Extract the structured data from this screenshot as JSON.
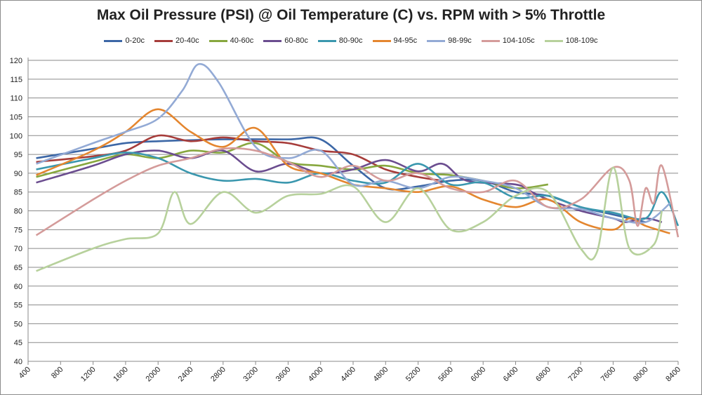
{
  "chart_data": {
    "type": "line",
    "title": "Max Oil Pressure (PSI) @ Oil Temperature (C) vs. RPM with > 5% Throttle",
    "xlabel": "",
    "ylabel": "",
    "xlim": [
      400,
      8400
    ],
    "ylim": [
      40,
      120
    ],
    "x_ticks": [
      400,
      800,
      1200,
      1600,
      2000,
      2400,
      2800,
      3200,
      3600,
      4000,
      4400,
      4800,
      5200,
      5600,
      6000,
      6400,
      6800,
      7200,
      7600,
      8000,
      8400
    ],
    "y_ticks": [
      40,
      45,
      50,
      55,
      60,
      65,
      70,
      75,
      80,
      85,
      90,
      95,
      100,
      105,
      110,
      115,
      120
    ],
    "grid": "horizontal",
    "legend": "top",
    "smoothed": true,
    "series": [
      {
        "name": "0-20c",
        "color": "#3c67a6",
        "points": [
          [
            500,
            94
          ],
          [
            1200,
            96.5
          ],
          [
            1600,
            98
          ],
          [
            2000,
            98.5
          ],
          [
            2800,
            99
          ],
          [
            3600,
            99
          ],
          [
            4000,
            99
          ],
          [
            4400,
            92
          ],
          [
            4800,
            86
          ],
          [
            5200,
            86.5
          ],
          [
            5600,
            88
          ],
          [
            6000,
            88
          ],
          [
            6400,
            85
          ],
          [
            6800,
            84
          ],
          [
            7200,
            81
          ],
          [
            7600,
            79
          ],
          [
            8000,
            77
          ]
        ]
      },
      {
        "name": "20-40c",
        "color": "#a63c3a",
        "points": [
          [
            500,
            93
          ],
          [
            1200,
            94.5
          ],
          [
            1600,
            96
          ],
          [
            2000,
            100
          ],
          [
            2400,
            98.5
          ],
          [
            2800,
            99.5
          ],
          [
            3200,
            98.5
          ],
          [
            3600,
            98
          ],
          [
            4000,
            96
          ],
          [
            4400,
            95
          ],
          [
            4800,
            91
          ],
          [
            5200,
            89
          ],
          [
            5500,
            88
          ]
        ]
      },
      {
        "name": "40-60c",
        "color": "#87a73e",
        "points": [
          [
            500,
            89
          ],
          [
            1200,
            93
          ],
          [
            1600,
            95
          ],
          [
            2000,
            94
          ],
          [
            2400,
            96
          ],
          [
            2800,
            95.5
          ],
          [
            3200,
            98
          ],
          [
            3600,
            93
          ],
          [
            4000,
            92
          ],
          [
            4400,
            91
          ],
          [
            4800,
            92
          ],
          [
            5200,
            90
          ],
          [
            5600,
            89.5
          ],
          [
            6000,
            88
          ],
          [
            6400,
            86
          ],
          [
            6800,
            87
          ]
        ]
      },
      {
        "name": "60-80c",
        "color": "#6b4d8f",
        "points": [
          [
            500,
            87.5
          ],
          [
            1200,
            92
          ],
          [
            1600,
            95
          ],
          [
            2000,
            96
          ],
          [
            2400,
            94
          ],
          [
            2800,
            96
          ],
          [
            3200,
            90.5
          ],
          [
            3600,
            92.5
          ],
          [
            4000,
            90
          ],
          [
            4400,
            91
          ],
          [
            4800,
            93.5
          ],
          [
            5200,
            90.5
          ],
          [
            5500,
            92.5
          ],
          [
            5800,
            88
          ],
          [
            6400,
            87
          ],
          [
            6600,
            85
          ],
          [
            6800,
            83
          ],
          [
            7200,
            80
          ],
          [
            7600,
            78
          ],
          [
            7750,
            77
          ],
          [
            8000,
            78
          ],
          [
            8200,
            77
          ]
        ]
      },
      {
        "name": "80-90c",
        "color": "#3a97ae",
        "points": [
          [
            500,
            91
          ],
          [
            1200,
            94
          ],
          [
            1600,
            95.5
          ],
          [
            2000,
            94
          ],
          [
            2400,
            90
          ],
          [
            2800,
            88
          ],
          [
            3200,
            88.5
          ],
          [
            3600,
            87.5
          ],
          [
            4000,
            90
          ],
          [
            4400,
            88
          ],
          [
            4800,
            87.5
          ],
          [
            5200,
            92.5
          ],
          [
            5600,
            87
          ],
          [
            6000,
            87.5
          ],
          [
            6400,
            83.5
          ],
          [
            6800,
            84
          ],
          [
            7200,
            81
          ],
          [
            7600,
            79.5
          ],
          [
            8000,
            78
          ],
          [
            8200,
            85
          ],
          [
            8400,
            76
          ]
        ]
      },
      {
        "name": "94-95c",
        "color": "#e4862f",
        "points": [
          [
            500,
            89.5
          ],
          [
            1200,
            96
          ],
          [
            1600,
            101
          ],
          [
            2000,
            107
          ],
          [
            2400,
            101
          ],
          [
            2800,
            97
          ],
          [
            3200,
            102
          ],
          [
            3600,
            92
          ],
          [
            4000,
            90
          ],
          [
            4400,
            87
          ],
          [
            4800,
            86
          ],
          [
            5200,
            85
          ],
          [
            5600,
            86.5
          ],
          [
            6000,
            83
          ],
          [
            6400,
            81
          ],
          [
            6800,
            83
          ],
          [
            7200,
            77
          ],
          [
            7600,
            75
          ],
          [
            7800,
            78
          ],
          [
            8000,
            76
          ],
          [
            8300,
            74
          ]
        ]
      },
      {
        "name": "98-99c",
        "color": "#93aad5",
        "points": [
          [
            500,
            92.5
          ],
          [
            1200,
            98
          ],
          [
            1600,
            101
          ],
          [
            2000,
            104.5
          ],
          [
            2300,
            112
          ],
          [
            2500,
            119
          ],
          [
            2750,
            114
          ],
          [
            3200,
            97
          ],
          [
            3600,
            94
          ],
          [
            4000,
            96
          ],
          [
            4400,
            87
          ],
          [
            4800,
            88
          ],
          [
            5200,
            86
          ],
          [
            5600,
            89
          ],
          [
            6000,
            88
          ],
          [
            6400,
            86
          ],
          [
            6800,
            81
          ],
          [
            7200,
            80.5
          ],
          [
            7600,
            78
          ],
          [
            8000,
            77
          ],
          [
            8300,
            82
          ]
        ]
      },
      {
        "name": "104-105c",
        "color": "#d49b9a",
        "points": [
          [
            500,
            73.5
          ],
          [
            1200,
            83
          ],
          [
            1600,
            88
          ],
          [
            2000,
            92
          ],
          [
            2400,
            94
          ],
          [
            2800,
            96.5
          ],
          [
            3200,
            96
          ],
          [
            3600,
            93
          ],
          [
            4000,
            89
          ],
          [
            4400,
            92
          ],
          [
            4800,
            88
          ],
          [
            5200,
            90
          ],
          [
            5600,
            86
          ],
          [
            6000,
            85
          ],
          [
            6400,
            88
          ],
          [
            6800,
            81
          ],
          [
            7200,
            83
          ],
          [
            7600,
            91.5
          ],
          [
            7800,
            88
          ],
          [
            7900,
            76
          ],
          [
            8000,
            86
          ],
          [
            8100,
            82
          ],
          [
            8200,
            92
          ],
          [
            8400,
            73
          ]
        ]
      },
      {
        "name": "108-109c",
        "color": "#b7d19c",
        "points": [
          [
            500,
            64
          ],
          [
            1200,
            70
          ],
          [
            1600,
            72.5
          ],
          [
            2000,
            74
          ],
          [
            2200,
            85
          ],
          [
            2400,
            76.5
          ],
          [
            2800,
            85
          ],
          [
            3200,
            79.5
          ],
          [
            3600,
            84
          ],
          [
            4000,
            84.5
          ],
          [
            4400,
            86.5
          ],
          [
            4800,
            77
          ],
          [
            5200,
            86
          ],
          [
            5600,
            75
          ],
          [
            6000,
            77
          ],
          [
            6400,
            84
          ],
          [
            6800,
            85
          ],
          [
            7200,
            70
          ],
          [
            7400,
            69
          ],
          [
            7600,
            91.5
          ],
          [
            7800,
            70
          ],
          [
            8100,
            71
          ],
          [
            8200,
            80
          ]
        ]
      }
    ]
  }
}
